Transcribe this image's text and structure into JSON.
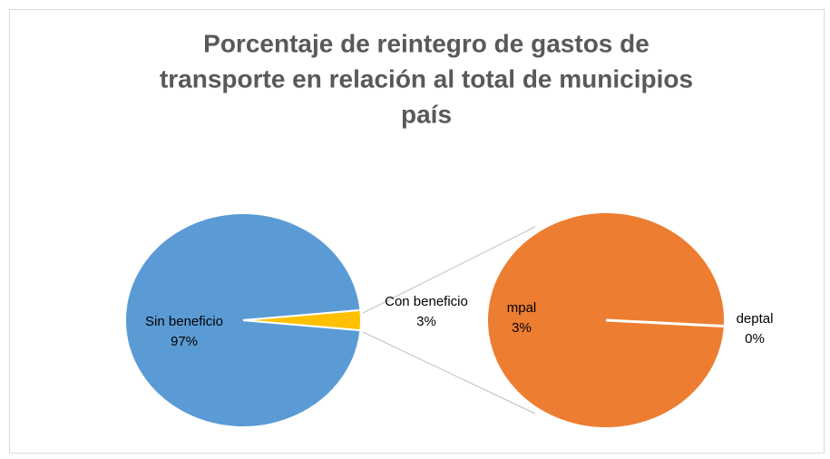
{
  "chart_data": {
    "type": "pie-of-pie",
    "title": [
      "Porcentaje de reintegro de gastos de",
      "transporte en relación al total de municipios",
      "país"
    ],
    "categories": [
      "Sin beneficio",
      "Con beneficio"
    ],
    "values": [
      97,
      3
    ],
    "value_labels": [
      "97%",
      "3%"
    ],
    "colors": [
      "#5b9bd5",
      "#ffc000"
    ],
    "secondary": {
      "categories": [
        "mpal",
        "deptal"
      ],
      "values": [
        3,
        0
      ],
      "value_labels": [
        "3%",
        "0%"
      ],
      "colors": [
        "#ed7d31",
        "#ed7d31"
      ]
    }
  }
}
